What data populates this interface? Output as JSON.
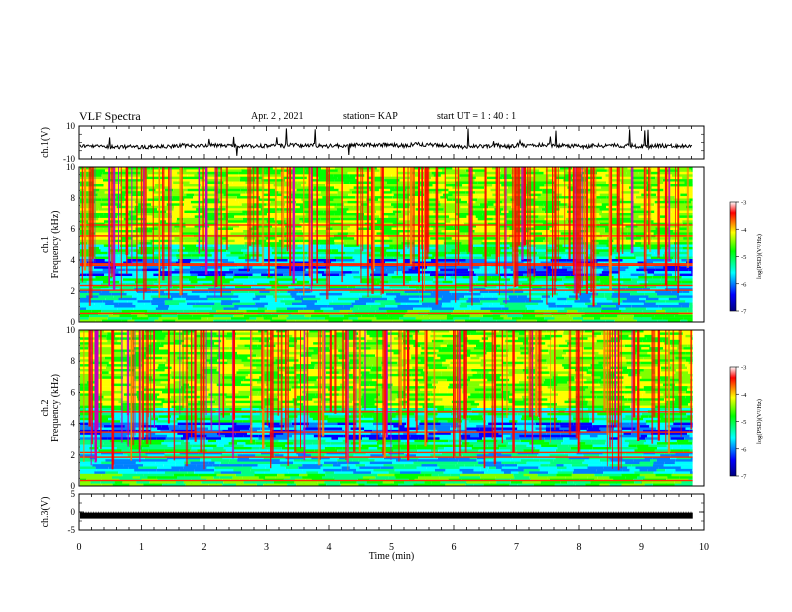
{
  "header": {
    "title": "VLF Spectra",
    "date": "Apr. 2  , 2021",
    "station": "station= KAP",
    "start": "start  UT  =   1  : 40 : 1"
  },
  "chart_data": [
    {
      "type": "line",
      "ylabel": "ch.1(V)",
      "xlim": [
        0,
        10
      ],
      "ylim": [
        -10,
        10
      ],
      "yticks": [
        "10",
        "-10"
      ],
      "note": "noisy waveform trace around 0 V"
    },
    {
      "type": "heatmap",
      "ylabel": "ch.1",
      "ylabel2": "Frequency  (kHz)",
      "xlim": [
        0,
        10
      ],
      "ylim": [
        0,
        10
      ],
      "yticks": [
        "0",
        "2",
        "4",
        "6",
        "8",
        "10"
      ],
      "colorbar": {
        "label": "log(PSD)(V²/Hz)",
        "range": [
          -7,
          -3
        ],
        "ticks": [
          "-3",
          "-4",
          "-5",
          "-6",
          "-7"
        ]
      }
    },
    {
      "type": "heatmap",
      "ylabel": "ch.2",
      "ylabel2": "Frequency  (kHz)",
      "xlim": [
        0,
        10
      ],
      "ylim": [
        0,
        10
      ],
      "yticks": [
        "0",
        "2",
        "4",
        "6",
        "8",
        "10"
      ],
      "colorbar": {
        "label": "log(PSD)(V²/Hz)",
        "range": [
          -7,
          -3
        ],
        "ticks": [
          "-3",
          "-4",
          "-5",
          "-6",
          "-7"
        ]
      }
    },
    {
      "type": "line",
      "ylabel": "ch.3(V)",
      "xlim": [
        0,
        10
      ],
      "ylim": [
        -5,
        5
      ],
      "yticks": [
        "5",
        "0",
        "-5"
      ],
      "note": "dense thick band near -1 V"
    }
  ],
  "xaxis": {
    "label": "Time  (min)",
    "ticks": [
      "0",
      "1",
      "2",
      "3",
      "4",
      "5",
      "6",
      "7",
      "8",
      "9",
      "10"
    ]
  },
  "colors": {
    "colormap": [
      "#000080",
      "#0000ff",
      "#00ffff",
      "#00ff00",
      "#ffff00",
      "#ff0000",
      "#ffffff"
    ]
  }
}
